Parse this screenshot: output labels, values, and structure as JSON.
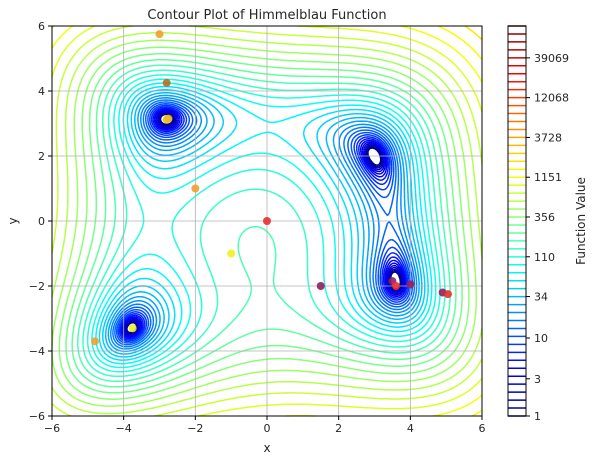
{
  "chart_data": {
    "type": "contour",
    "title": "Contour Plot of Himmelblau Function",
    "xlabel": "x",
    "ylabel": "y",
    "xlim": [
      -6,
      6
    ],
    "ylim": [
      -6,
      6
    ],
    "xticks": [
      -6,
      -4,
      -2,
      0,
      2,
      4,
      6
    ],
    "yticks": [
      -6,
      -4,
      -2,
      0,
      2,
      4,
      6
    ],
    "grid": true,
    "function": "(x^2 + y - 11)^2 + (x + y^2 - 7)^2",
    "contour_levels": "logarithmically spaced, about 50 levels from 1 to ~100000",
    "colormap": "jet",
    "colorbar": {
      "label": "Function Value",
      "tick_labels": [
        "1",
        "3",
        "10",
        "34",
        "110",
        "356",
        "1151",
        "3728",
        "12068",
        "39069"
      ],
      "tick_values": [
        1,
        3,
        10,
        34,
        110,
        356,
        1151,
        3728,
        12068,
        39069
      ],
      "max_level": 100000
    },
    "minima_visible": [
      {
        "x": -2.805,
        "y": 3.131
      },
      {
        "x": 3.0,
        "y": 2.0
      },
      {
        "x": -3.779,
        "y": -3.283
      },
      {
        "x": 3.584,
        "y": -1.848
      }
    ],
    "scatter_points": [
      {
        "x": -3.0,
        "y": 5.75,
        "color": "#f0a030"
      },
      {
        "x": -2.8,
        "y": 4.25,
        "color": "#b07020"
      },
      {
        "x": -2.75,
        "y": 3.15,
        "color": "#f0a030"
      },
      {
        "x": -2.8,
        "y": 3.12,
        "color": "#e8c020"
      },
      {
        "x": -2.0,
        "y": 1.0,
        "color": "#f0a030"
      },
      {
        "x": 0.0,
        "y": 0.0,
        "color": "#e83030"
      },
      {
        "x": -1.0,
        "y": -1.0,
        "color": "#f0f020"
      },
      {
        "x": 1.5,
        "y": -2.0,
        "color": "#902060"
      },
      {
        "x": 3.5,
        "y": -1.85,
        "color": "#902060"
      },
      {
        "x": 3.6,
        "y": -2.0,
        "color": "#e83030"
      },
      {
        "x": 4.0,
        "y": -1.95,
        "color": "#902060"
      },
      {
        "x": 4.9,
        "y": -2.2,
        "color": "#902060"
      },
      {
        "x": 5.05,
        "y": -2.25,
        "color": "#e83030"
      },
      {
        "x": -3.75,
        "y": -3.3,
        "color": "#f0f020"
      },
      {
        "x": -4.8,
        "y": -3.7,
        "color": "#f0a030"
      }
    ]
  }
}
